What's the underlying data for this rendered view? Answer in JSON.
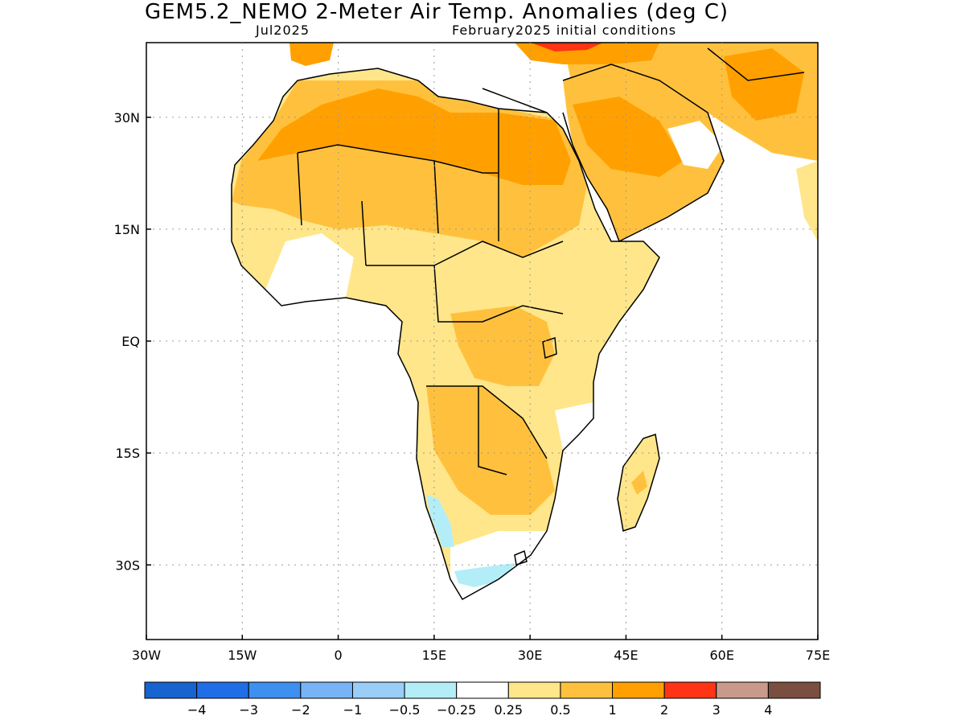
{
  "title": "GEM5.2_NEMO 2-Meter Air Temp. Anomalies (deg C)",
  "subtitle_left": "Jul2025",
  "subtitle_right": "February2025 initial conditions",
  "lat_labels": [
    "30N",
    "15N",
    "EQ",
    "15S",
    "30S"
  ],
  "lon_labels": [
    "30W",
    "15W",
    "0",
    "15E",
    "30E",
    "45E",
    "60E",
    "75E"
  ],
  "colorbar": {
    "colors": [
      "#1764d0",
      "#1f6ee8",
      "#3d8ff0",
      "#78b4f5",
      "#98cef8",
      "#b3eef8",
      "#ffffff",
      "#ffe68a",
      "#ffc13d",
      "#ffa000",
      "#ff3414",
      "#c99a8c",
      "#7a4e40"
    ],
    "labels": [
      "-4",
      "-3",
      "-2",
      "-1",
      "-0.5",
      "-0.25",
      "0.25",
      "0.5",
      "1",
      "2",
      "3",
      "4"
    ]
  },
  "map": {
    "extent": {
      "lon": [
        -30,
        75
      ],
      "lat": [
        -40,
        40
      ]
    },
    "grid": "dotted",
    "colors": {
      "light": "#ffe68a",
      "mid": "#ffc13d",
      "orange": "#ffa000",
      "red": "#ff3414",
      "cool": "#b3eef8",
      "neutral": "#ffffff"
    }
  }
}
